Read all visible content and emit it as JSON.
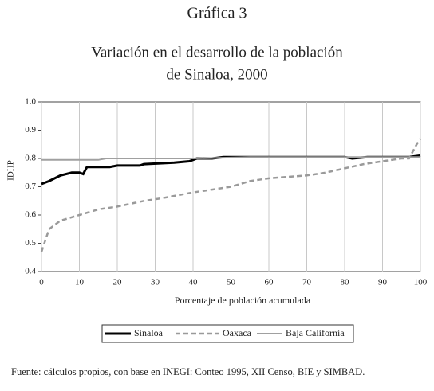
{
  "chart_data": {
    "type": "line",
    "title": "Gráfica 3",
    "subtitle": [
      "Variación en el desarrollo de la población",
      "de Sinaloa, 2000"
    ],
    "x_label": "Porcentaje de población acumulada",
    "y_label": "IDHP",
    "xlim": [
      0,
      100
    ],
    "xticks": [
      0,
      10,
      20,
      30,
      40,
      50,
      60,
      70,
      80,
      90,
      100
    ],
    "ylim": [
      0.4,
      1
    ],
    "yticks": [
      0.4,
      0.5,
      0.6,
      0.7,
      0.8,
      0.9,
      {
        "value": 1,
        "label": "1.0"
      }
    ],
    "grid": "x",
    "series": [
      {
        "name": "Sinaloa",
        "color": "#000000",
        "width": 3,
        "dashed": false,
        "x": [
          0,
          2,
          5,
          8,
          10,
          11,
          12,
          18,
          20,
          26,
          27,
          35,
          39,
          41,
          45,
          48,
          80,
          82,
          86,
          97,
          100
        ],
        "values": [
          0.71,
          0.72,
          0.74,
          0.75,
          0.75,
          0.745,
          0.77,
          0.77,
          0.775,
          0.775,
          0.78,
          0.785,
          0.79,
          0.8,
          0.8,
          0.805,
          0.805,
          0.8,
          0.805,
          0.805,
          0.81
        ]
      },
      {
        "name": "Oaxaca",
        "color": "#9a9a9a",
        "width": 2.5,
        "dashed": true,
        "x": [
          0,
          2,
          5,
          10,
          15,
          20,
          27,
          32,
          40,
          45,
          50,
          55,
          60,
          70,
          75,
          80,
          85,
          90,
          95,
          97,
          99,
          100
        ],
        "values": [
          0.47,
          0.55,
          0.58,
          0.6,
          0.62,
          0.63,
          0.65,
          0.66,
          0.68,
          0.69,
          0.7,
          0.72,
          0.73,
          0.74,
          0.75,
          0.765,
          0.78,
          0.79,
          0.8,
          0.8,
          0.85,
          0.87
        ]
      },
      {
        "name": "Baja California",
        "color": "#a0a0a0",
        "width": 2,
        "dashed": false,
        "x": [
          0,
          15,
          17,
          40,
          55,
          100
        ],
        "values": [
          0.795,
          0.795,
          0.8,
          0.8,
          0.805,
          0.805
        ]
      }
    ],
    "footnote": "Fuente: cálculos propios, con base en INEGI: Conteo 1995, XII Censo, BIE y SIMBAD."
  }
}
